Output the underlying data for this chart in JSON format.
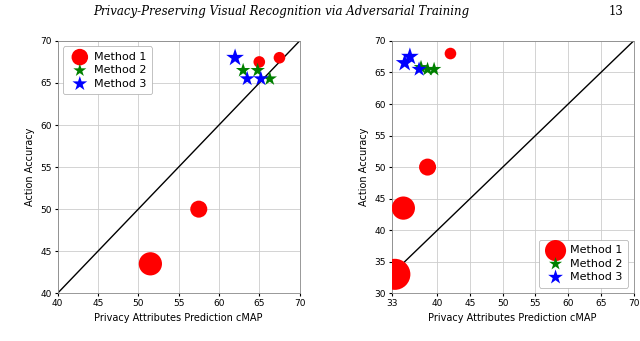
{
  "title": "Privacy-Preserving Visual Recognition via Adversarial Training",
  "title_number": "13",
  "subplot1": {
    "xlim": [
      40,
      70
    ],
    "ylim": [
      40,
      70
    ],
    "xticks": [
      40,
      45,
      50,
      55,
      60,
      65,
      70
    ],
    "yticks": [
      40,
      45,
      50,
      55,
      60,
      65,
      70
    ],
    "xlabel": "Privacy Attributes Prediction cMAP",
    "ylabel": "Action Accuracy",
    "method1": {
      "x": [
        51.5,
        57.5,
        65.0,
        67.5
      ],
      "y": [
        43.5,
        50.0,
        67.5,
        68.0
      ],
      "sizes": [
        280,
        150,
        70,
        70
      ]
    },
    "method2": {
      "x": [
        63.0,
        64.8,
        66.3
      ],
      "y": [
        66.5,
        66.5,
        65.5
      ],
      "sizes": [
        120,
        120,
        120
      ]
    },
    "method3": {
      "x": [
        62.0,
        63.5,
        65.2
      ],
      "y": [
        68.0,
        65.5,
        65.5
      ],
      "sizes": [
        180,
        130,
        130
      ]
    }
  },
  "subplot2": {
    "xlim": [
      33,
      70
    ],
    "ylim": [
      30,
      70
    ],
    "xticks": [
      33,
      40,
      45,
      50,
      55,
      60,
      65,
      70
    ],
    "yticks": [
      30,
      35,
      40,
      45,
      50,
      55,
      60,
      65,
      70
    ],
    "xlabel": "Privacy Attributes Prediction cMAP",
    "ylabel": "Action Accuracy",
    "method1": {
      "x": [
        33.5,
        34.8,
        38.5,
        42.0
      ],
      "y": [
        33.0,
        43.5,
        50.0,
        68.0
      ],
      "sizes": [
        500,
        280,
        150,
        70
      ]
    },
    "method2": {
      "x": [
        37.5,
        38.5,
        39.5
      ],
      "y": [
        65.8,
        65.5,
        65.5
      ],
      "sizes": [
        120,
        120,
        120
      ]
    },
    "method3": {
      "x": [
        35.0,
        35.8,
        37.2
      ],
      "y": [
        66.5,
        67.5,
        65.5
      ],
      "sizes": [
        180,
        180,
        130
      ]
    }
  },
  "method1_color": "#ff0000",
  "method2_color": "#008000",
  "method3_color": "#0000ff",
  "bg_color": "#ffffff",
  "grid_color": "#cccccc",
  "legend_fontsize": 8
}
